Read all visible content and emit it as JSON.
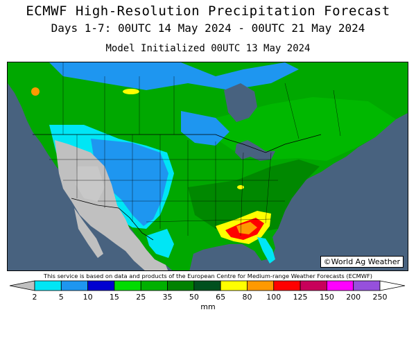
{
  "header": {
    "title": "ECMWF High-Resolution Precipitation Forecast",
    "subtitle": "Days 1-7: 00UTC 14 May 2024 - 00UTC 21 May 2024",
    "initialized": "Model Initialized 00UTC 13 May 2024"
  },
  "map": {
    "copyright": "©World Ag Weather",
    "ocean_color": "#48627f",
    "land_dry_color": "#c0c0c0",
    "border_color": "#000000"
  },
  "footer": {
    "disclaimer": "This service is based on data and products of the European Centre for Medium-range Weather Forecasts (ECMWF)"
  },
  "legend": {
    "units": "mm",
    "colors": [
      "#c0c0c0",
      "#00e6f5",
      "#1e96f0",
      "#0000d0",
      "#00dc00",
      "#00b000",
      "#008200",
      "#00501e",
      "#ffff00",
      "#ff9900",
      "#ff0000",
      "#c8005a",
      "#ff00ff",
      "#9650dc"
    ],
    "ticks": [
      "2",
      "5",
      "10",
      "15",
      "25",
      "35",
      "50",
      "65",
      "80",
      "100",
      "125",
      "150",
      "200",
      "250"
    ]
  }
}
